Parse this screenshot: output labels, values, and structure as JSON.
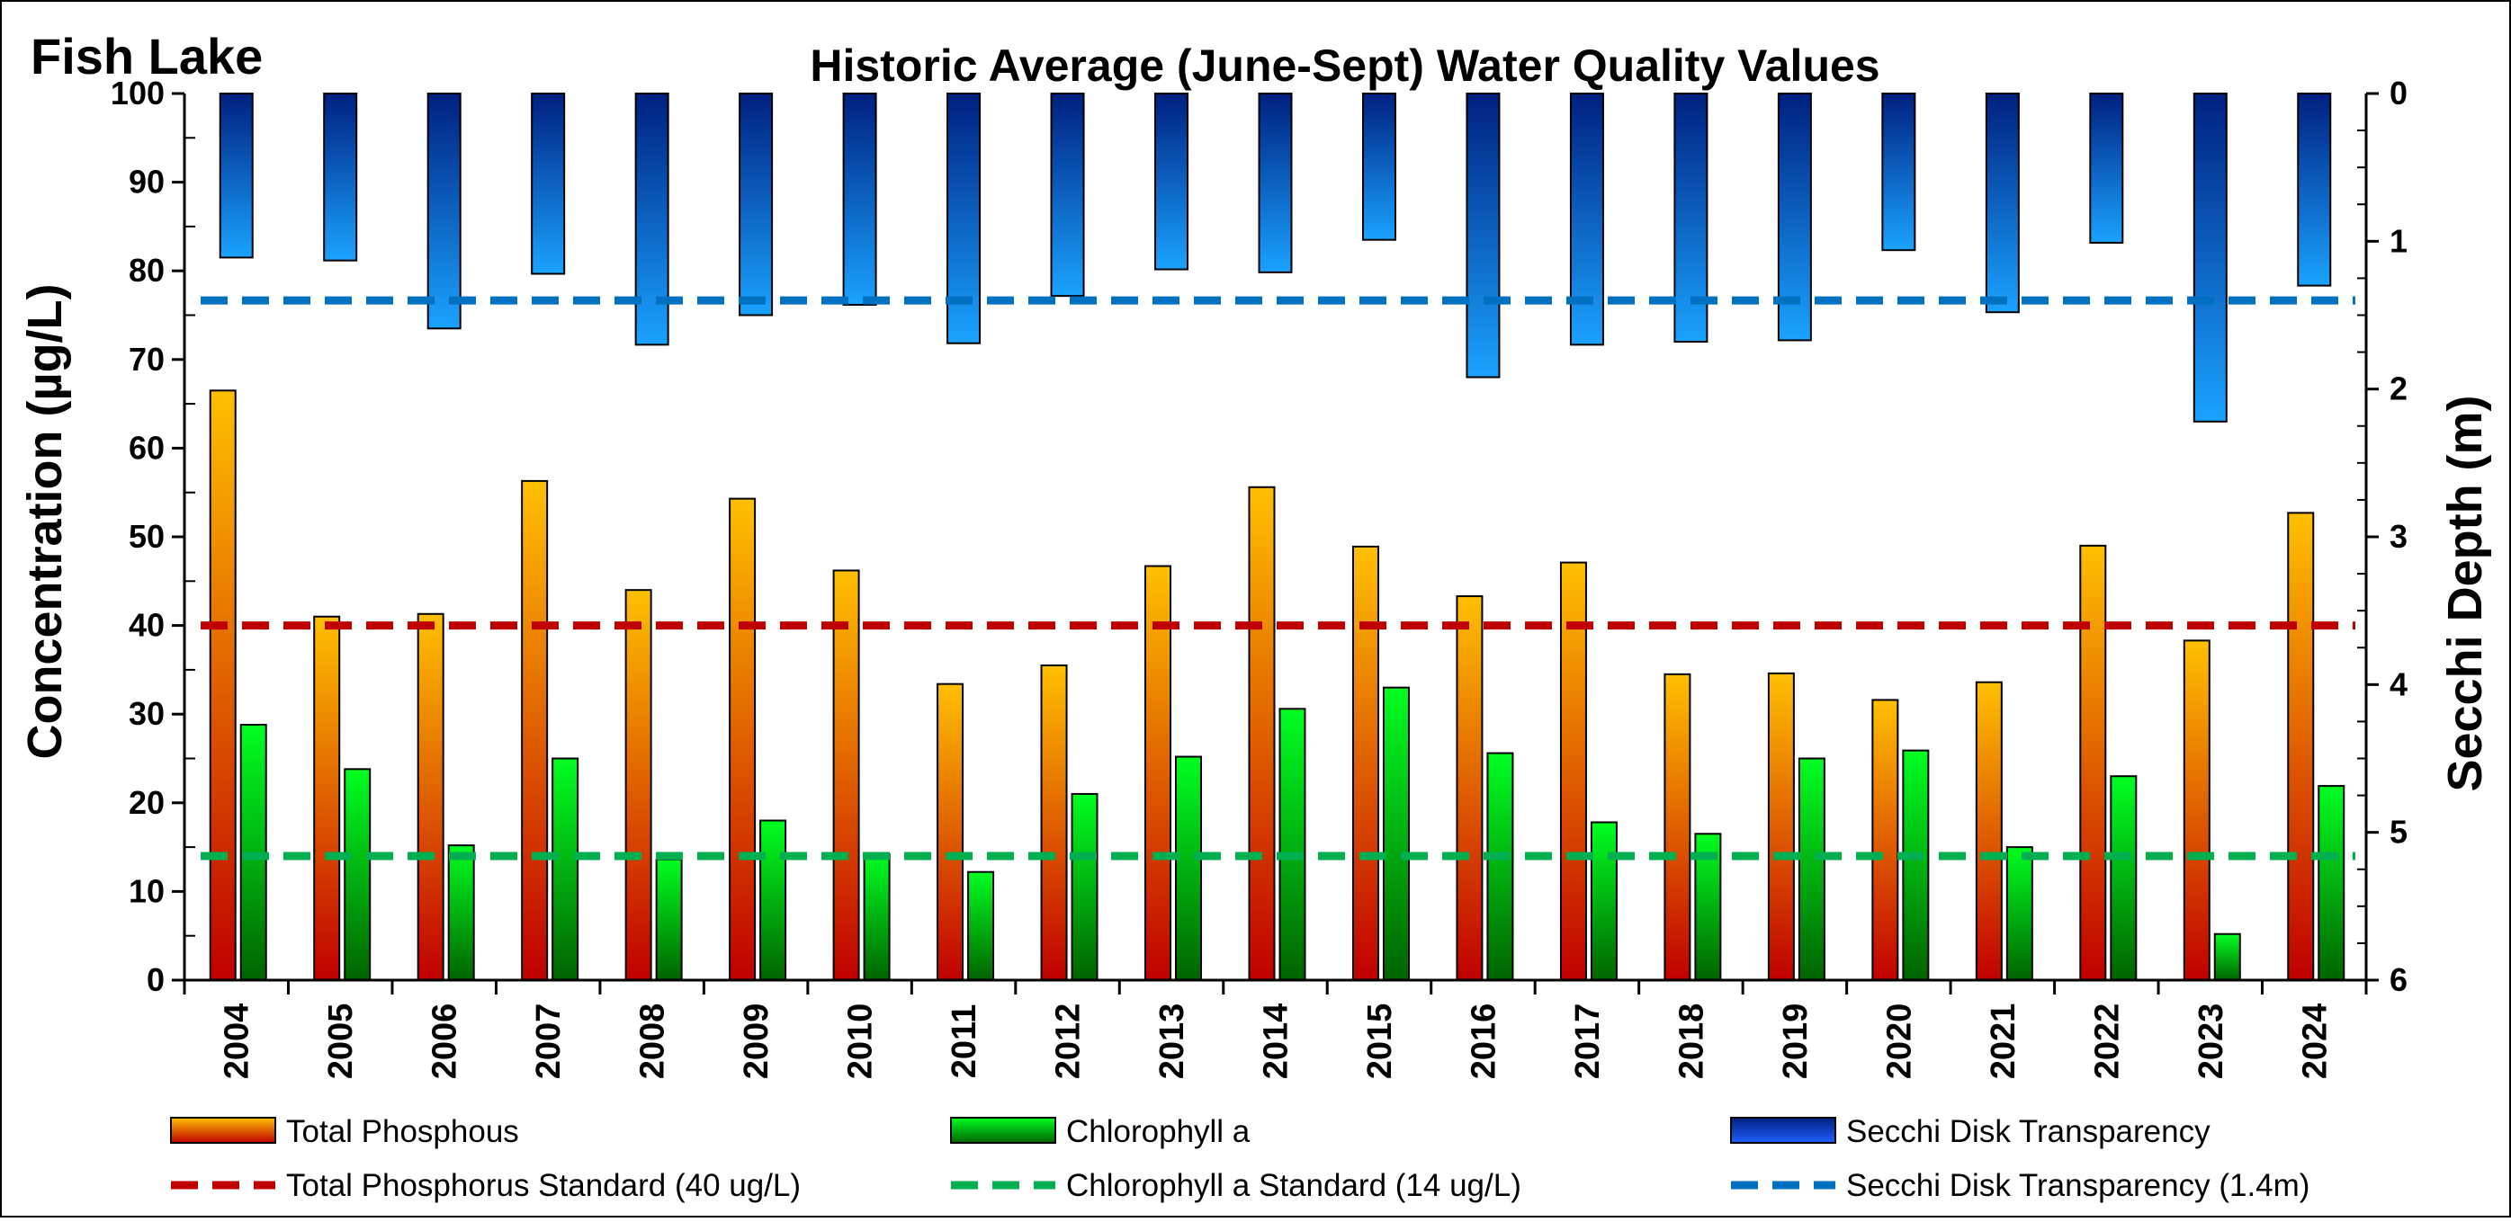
{
  "lake_name": "Fish Lake",
  "chart_data": {
    "type": "bar",
    "title": "Historic Average (June-Sept) Water Quality Values",
    "ylabel": "Concentration (µg/L)",
    "y2label": "Secchi Depth (m)",
    "ylim": [
      0,
      100
    ],
    "y2lim": [
      0,
      6
    ],
    "y2_inverted": true,
    "y_ticks": [
      "0",
      "10",
      "20",
      "30",
      "40",
      "50",
      "60",
      "70",
      "80",
      "90",
      "100"
    ],
    "y2_ticks": [
      "0",
      "1",
      "2",
      "3",
      "4",
      "5",
      "6"
    ],
    "categories": [
      "2004",
      "2005",
      "2006",
      "2007",
      "2008",
      "2009",
      "2010",
      "2011",
      "2012",
      "2013",
      "2014",
      "2015",
      "2016",
      "2017",
      "2018",
      "2019",
      "2020",
      "2021",
      "2022",
      "2023",
      "2024"
    ],
    "series": [
      {
        "name": "Total Phosphous",
        "axis": "left",
        "values": [
          66.5,
          41.0,
          41.3,
          56.3,
          44.0,
          54.3,
          46.2,
          33.4,
          35.5,
          46.7,
          55.6,
          48.9,
          43.3,
          47.1,
          34.5,
          34.6,
          31.6,
          33.6,
          49.0,
          38.3,
          52.7
        ]
      },
      {
        "name": "Chlorophyll a",
        "axis": "left",
        "values": [
          28.8,
          23.8,
          15.2,
          25.0,
          13.6,
          18.0,
          14.2,
          12.2,
          21.0,
          25.2,
          30.6,
          33.0,
          25.6,
          17.8,
          16.5,
          25.0,
          25.9,
          15.0,
          23.0,
          5.2,
          21.9
        ]
      },
      {
        "name": "Secchi Disk Transparency",
        "axis": "right",
        "values": [
          1.11,
          1.13,
          1.59,
          1.22,
          1.7,
          1.5,
          1.43,
          1.69,
          1.37,
          1.19,
          1.21,
          0.99,
          1.92,
          1.7,
          1.68,
          1.67,
          1.06,
          1.48,
          1.01,
          2.22,
          1.3
        ]
      }
    ],
    "reference_lines": [
      {
        "name": "Total Phosphorus Standard (40 ug/L)",
        "axis": "left",
        "value": 40,
        "color": "#c00000"
      },
      {
        "name": "Chlorophyll a Standard (14 ug/L)",
        "axis": "left",
        "value": 14,
        "color": "#00b050"
      },
      {
        "name": "Secchi Disk Transparency (1.4m)",
        "axis": "right",
        "value": 1.4,
        "color": "#0070c0"
      }
    ],
    "legend_placement": "bottom",
    "grid": false
  },
  "colors": {
    "phosphorus_top": "#ffc000",
    "phosphorus_bottom": "#c00000",
    "chlorophyll_top": "#00ff21",
    "chlorophyll_bottom": "#006400",
    "secchi_top": "#002080",
    "secchi_bottom": "#1aa3ff"
  }
}
